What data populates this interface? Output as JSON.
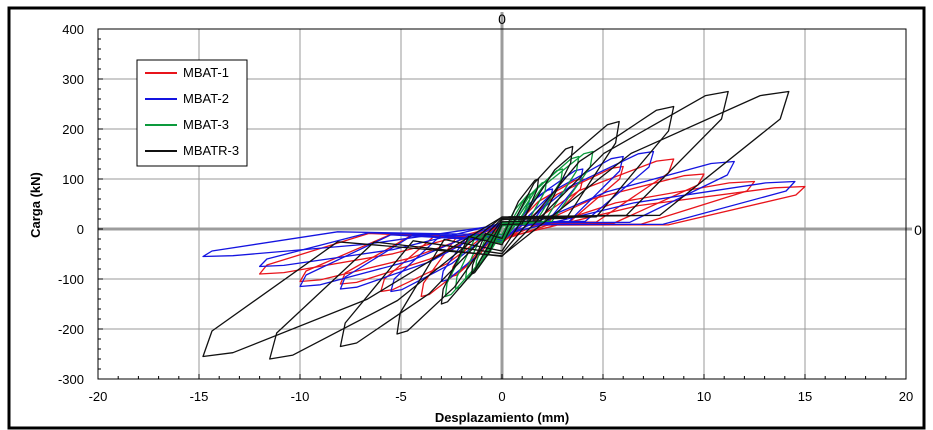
{
  "chart_data": {
    "type": "line",
    "title": "",
    "xlabel": "Desplazamiento (mm)",
    "ylabel": "Carga (kN)",
    "xlim": [
      -20,
      20
    ],
    "ylim": [
      -300,
      400
    ],
    "x_ticks": [
      -20,
      -15,
      -10,
      -5,
      0,
      5,
      10,
      15,
      20
    ],
    "y_ticks": [
      -300,
      -200,
      -100,
      0,
      100,
      200,
      300,
      400
    ],
    "x_tick_labels": [
      "-20",
      "-15",
      "-10",
      "-5",
      "0",
      "5",
      "10",
      "15",
      "20"
    ],
    "y_tick_labels": [
      "-300",
      "-200",
      "-100",
      "0",
      "100",
      "200",
      "300",
      "400"
    ],
    "grid": true,
    "legend_position": "top-left",
    "origin_axis_labels": {
      "x_axis_zero": "0",
      "y_axis_zero": "0"
    },
    "series": [
      {
        "name": "MBAT-1",
        "color": "#e8141b",
        "loops": [
          {
            "max_disp": 15.0,
            "max_load": 85,
            "min_disp": -12.0,
            "min_load": -90
          },
          {
            "max_disp": 12.5,
            "max_load": 95,
            "min_disp": -10.0,
            "min_load": -105
          },
          {
            "max_disp": 10.0,
            "max_load": 110,
            "min_disp": -8.0,
            "min_load": -110
          },
          {
            "max_disp": 8.5,
            "max_load": 140,
            "min_disp": -6.0,
            "min_load": -125
          },
          {
            "max_disp": 6.0,
            "max_load": 125,
            "min_disp": -4.0,
            "min_load": -135
          },
          {
            "max_disp": 4.0,
            "max_load": 100,
            "min_disp": -2.5,
            "min_load": -95
          }
        ]
      },
      {
        "name": "MBAT-2",
        "color": "#1414e0",
        "loops": [
          {
            "max_disp": 14.5,
            "max_load": 95,
            "min_disp": -14.8,
            "min_load": -55
          },
          {
            "max_disp": 11.5,
            "max_load": 135,
            "min_disp": -12.0,
            "min_load": -75
          },
          {
            "max_disp": 7.5,
            "max_load": 155,
            "min_disp": -10.0,
            "min_load": -115
          },
          {
            "max_disp": 6.0,
            "max_load": 145,
            "min_disp": -8.0,
            "min_load": -120
          },
          {
            "max_disp": 4.0,
            "max_load": 120,
            "min_disp": -5.5,
            "min_load": -125
          },
          {
            "max_disp": 2.5,
            "max_load": 80,
            "min_disp": -3.0,
            "min_load": -105
          }
        ]
      },
      {
        "name": "MBAT-3",
        "color": "#0c9a3c",
        "loops": [
          {
            "max_disp": 4.5,
            "max_load": 155,
            "min_disp": -2.8,
            "min_load": -135
          },
          {
            "max_disp": 3.8,
            "max_load": 145,
            "min_disp": -2.3,
            "min_load": -120
          },
          {
            "max_disp": 3.0,
            "max_load": 120,
            "min_disp": -1.8,
            "min_load": -100
          },
          {
            "max_disp": 2.2,
            "max_load": 95,
            "min_disp": -1.3,
            "min_load": -80
          },
          {
            "max_disp": 1.4,
            "max_load": 70,
            "min_disp": -0.8,
            "min_load": -55
          }
        ]
      },
      {
        "name": "MBATR-3",
        "color": "#111111",
        "loops": [
          {
            "max_disp": 14.2,
            "max_load": 275,
            "min_disp": -14.8,
            "min_load": -255
          },
          {
            "max_disp": 11.2,
            "max_load": 275,
            "min_disp": -11.5,
            "min_load": -260
          },
          {
            "max_disp": 8.5,
            "max_load": 245,
            "min_disp": -8.0,
            "min_load": -235
          },
          {
            "max_disp": 5.8,
            "max_load": 215,
            "min_disp": -5.2,
            "min_load": -210
          },
          {
            "max_disp": 3.5,
            "max_load": 165,
            "min_disp": -3.0,
            "min_load": -150
          },
          {
            "max_disp": 1.8,
            "max_load": 100,
            "min_disp": -1.5,
            "min_load": -90
          }
        ]
      }
    ]
  }
}
